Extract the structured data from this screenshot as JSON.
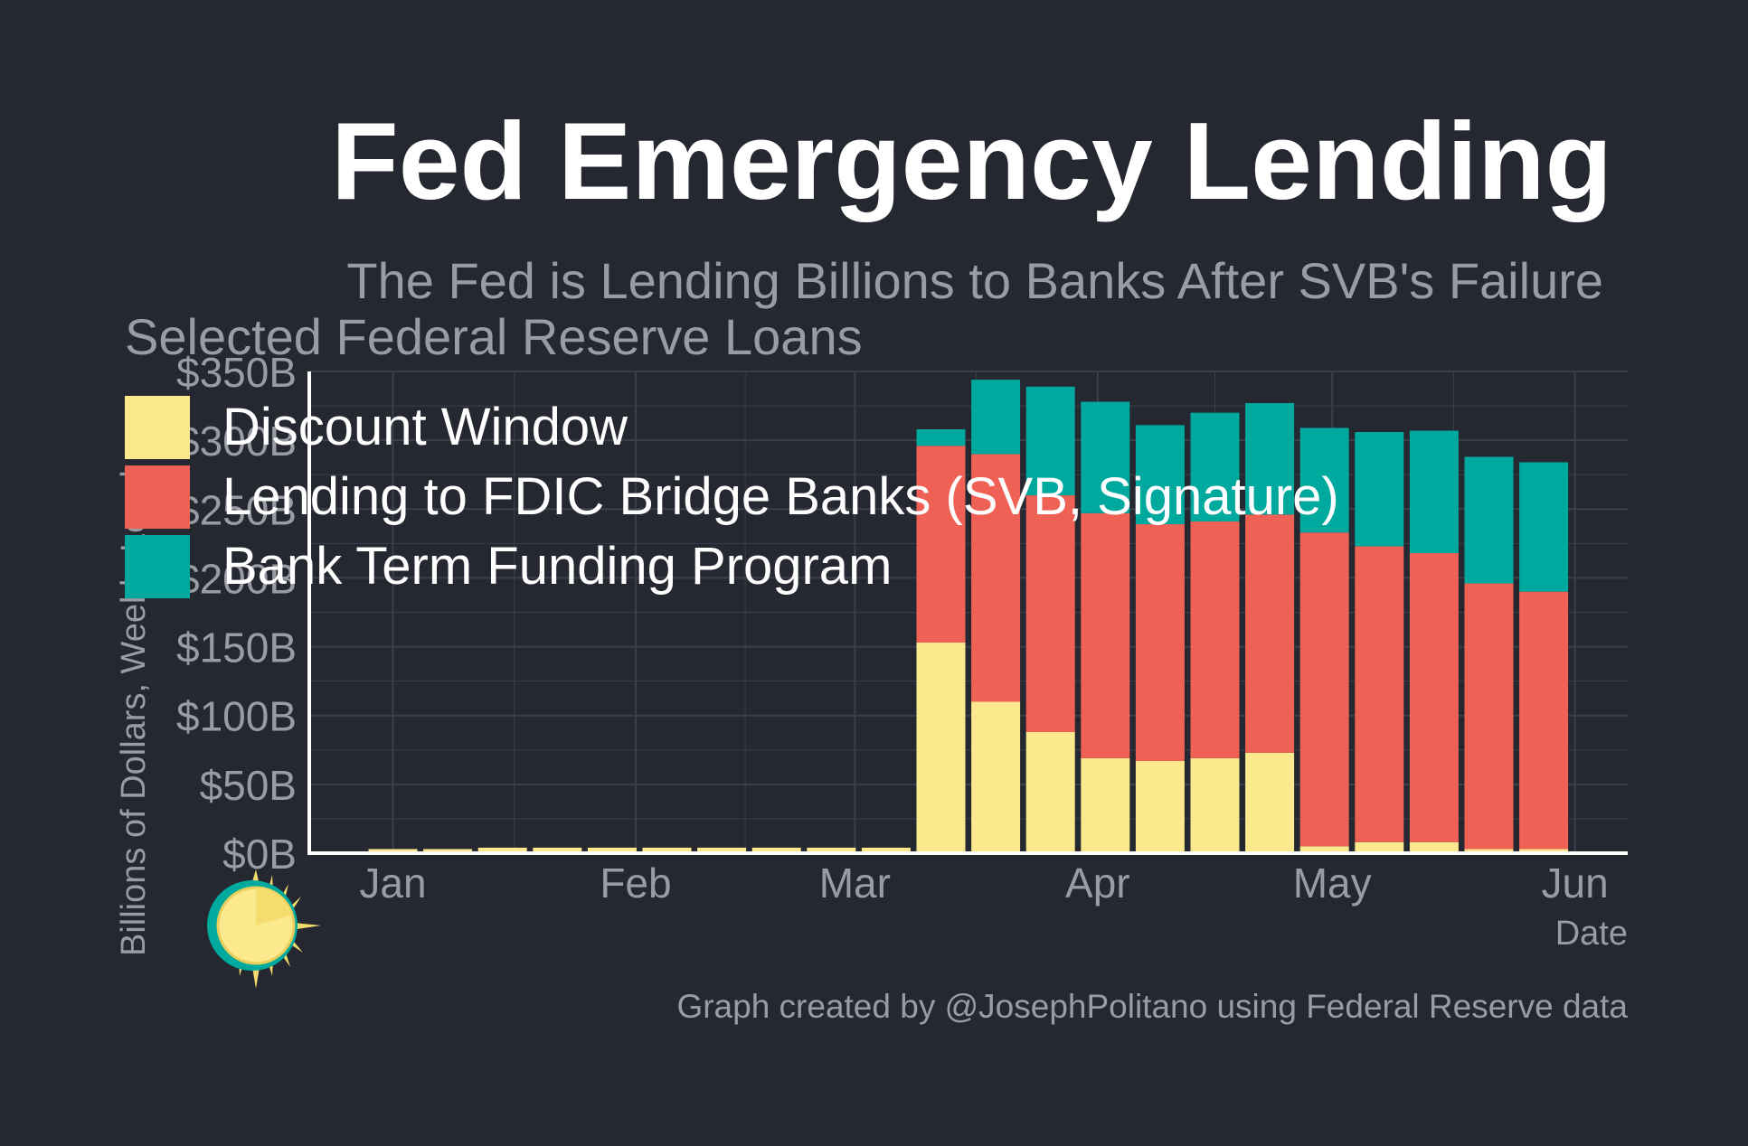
{
  "chart_data": {
    "type": "bar",
    "stacked": true,
    "title": "Fed Emergency Lending",
    "subtitle": "The Fed is Lending Billions to Banks After SVB's Failure",
    "panel_title": "Selected Federal Reserve Loans",
    "ylabel": "Billions of Dollars, Weekly Level",
    "xlabel": "Date",
    "caption": "Graph created by @JosephPolitano using Federal Reserve data",
    "ylim": [
      0,
      350
    ],
    "y_ticks": [
      0,
      50,
      100,
      150,
      200,
      250,
      300,
      350
    ],
    "y_tick_labels": [
      "$0B",
      "$50B",
      "$100B",
      "$150B",
      "$200B",
      "$250B",
      "$300B",
      "$350B"
    ],
    "x_tick_labels": [
      "Jan",
      "Feb",
      "Mar",
      "Apr",
      "May",
      "Jun"
    ],
    "x_tick_positions": [
      0,
      4.43,
      8.43,
      12.86,
      17.14,
      21.57
    ],
    "grid": true,
    "legend_position": "top-left",
    "colors": {
      "background": "#252830",
      "grid": "#3b3f49",
      "axis": "#ffffff",
      "title": "#ffffff",
      "muted": "#9a9ca3",
      "legend_text": "#ffffff"
    },
    "categories": [
      "2023-01-04",
      "2023-01-11",
      "2023-01-18",
      "2023-01-25",
      "2023-02-01",
      "2023-02-08",
      "2023-02-15",
      "2023-02-22",
      "2023-03-01",
      "2023-03-08",
      "2023-03-15",
      "2023-03-22",
      "2023-03-29",
      "2023-04-05",
      "2023-04-12",
      "2023-04-19",
      "2023-04-26",
      "2023-05-03",
      "2023-05-10",
      "2023-05-17",
      "2023-05-24",
      "2023-05-31"
    ],
    "series": [
      {
        "name": "Discount Window",
        "color": "#fce98e",
        "values": [
          3,
          3,
          4,
          4,
          4,
          4,
          4,
          4,
          4,
          4,
          153,
          110,
          88,
          69,
          67,
          69,
          73,
          5,
          8,
          8,
          3,
          3
        ]
      },
      {
        "name": "Lending to FDIC Bridge Banks (SVB, Signature)",
        "color": "#ef6055",
        "values": [
          0,
          0,
          0,
          0,
          0,
          0,
          0,
          0,
          0,
          0,
          143,
          180,
          172,
          178,
          172,
          172,
          173,
          228,
          215,
          210,
          193,
          187
        ]
      },
      {
        "name": "Bank Term Funding Program",
        "color": "#00a99d",
        "values": [
          0,
          0,
          0,
          0,
          0,
          0,
          0,
          0,
          0,
          0,
          12,
          54,
          79,
          81,
          72,
          79,
          81,
          76,
          83,
          89,
          92,
          94
        ]
      }
    ]
  }
}
